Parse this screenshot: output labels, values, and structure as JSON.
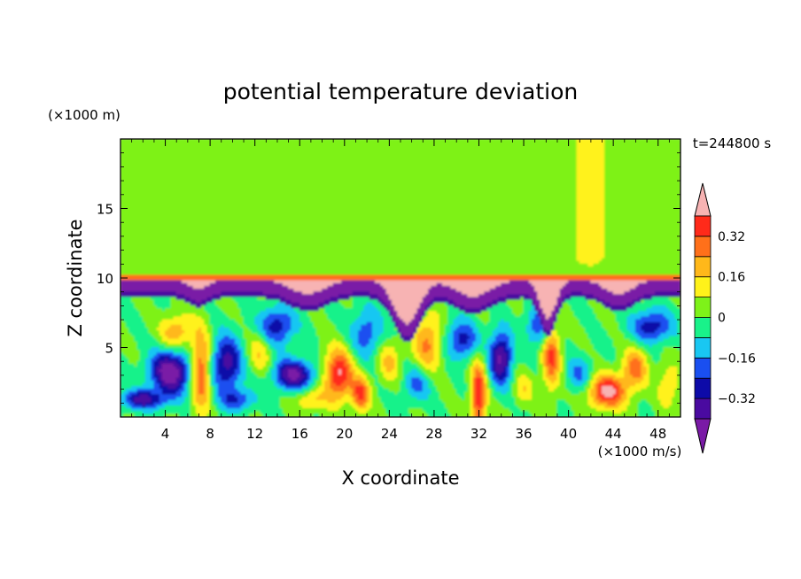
{
  "chart_data": {
    "type": "heatmap",
    "title": "potential temperature deviation",
    "xlabel": "X coordinate",
    "ylabel": "Z coordinate",
    "x_unit": "(×1000 m/s)",
    "y_unit": "(×1000 m)",
    "time_label": "t=244800 s",
    "xlim": [
      0,
      50
    ],
    "ylim": [
      0,
      20
    ],
    "x_ticks": [
      4,
      8,
      12,
      16,
      20,
      24,
      28,
      32,
      36,
      40,
      44,
      48
    ],
    "y_ticks": [
      5,
      10,
      15
    ],
    "colorbar": {
      "levels": [
        -0.4,
        -0.32,
        -0.24,
        -0.16,
        -0.08,
        0,
        0.08,
        0.16,
        0.24,
        0.32,
        0.4
      ],
      "labels": [
        "0.32",
        "0.16",
        "0",
        "−0.16",
        "−0.32"
      ],
      "label_values": [
        0.32,
        0.16,
        0,
        -0.16,
        -0.32
      ],
      "colors": [
        "#7a1aa6",
        "#4a0aa0",
        "#0d0aa8",
        "#1a4ff0",
        "#19c7f2",
        "#19f28a",
        "#7ef219",
        "#fff21a",
        "#ffb81a",
        "#ff701a",
        "#ff2a1a",
        "#f7b3b3"
      ]
    },
    "features": {
      "tropopause_z": 10,
      "upper_layer": "near-zero (green)",
      "lower_layer": "alternating warm/cold eddies"
    }
  }
}
